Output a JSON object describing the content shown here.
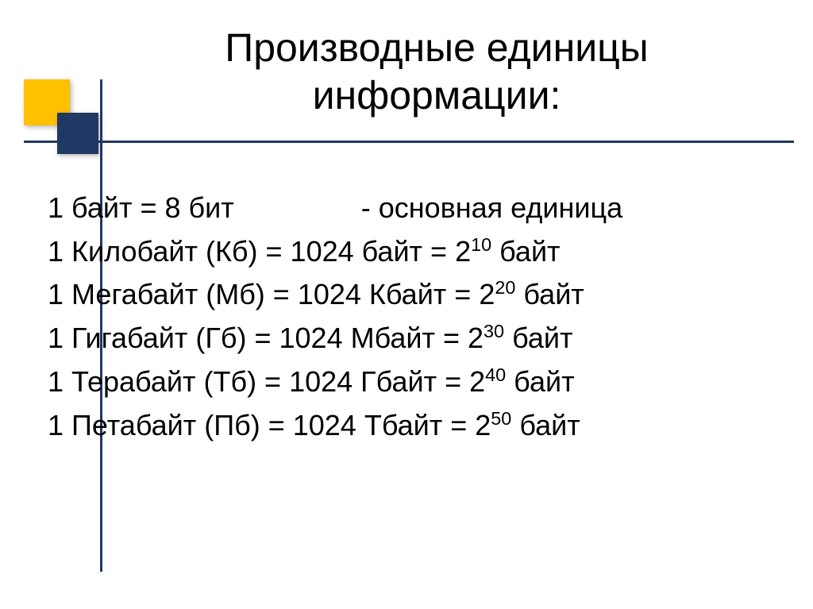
{
  "title_line1": "Производные единицы",
  "title_line2": "информации:",
  "rows": [
    {
      "pre": "1 байт = 8 бит",
      "gap": true,
      "post": "-  основная единица"
    },
    {
      "pre": "1 Килобайт (Кб) = 1024 байт = 2",
      "exp": "10",
      "post": " байт"
    },
    {
      "pre": "1 Мегабайт (Мб) = 1024 Кбайт = 2",
      "exp": "20",
      "post": " байт"
    },
    {
      "pre": "1 Гигабайт (Гб) = 1024 Мбайт = 2",
      "exp": "30",
      "post": " байт"
    },
    {
      "pre": "1 Терабайт (Тб) = 1024 Гбайт = 2",
      "exp": "40",
      "post": " байт"
    },
    {
      "pre": "1 Петабайт (Пб) = 1024 Тбайт = 2",
      "exp": "50",
      "post": " байт"
    }
  ],
  "colors": {
    "yellow": "#ffc000",
    "blue": "#203864",
    "text": "#000000",
    "bg": "#ffffff"
  },
  "fonts": {
    "title_size": 50,
    "body_size": 36
  }
}
